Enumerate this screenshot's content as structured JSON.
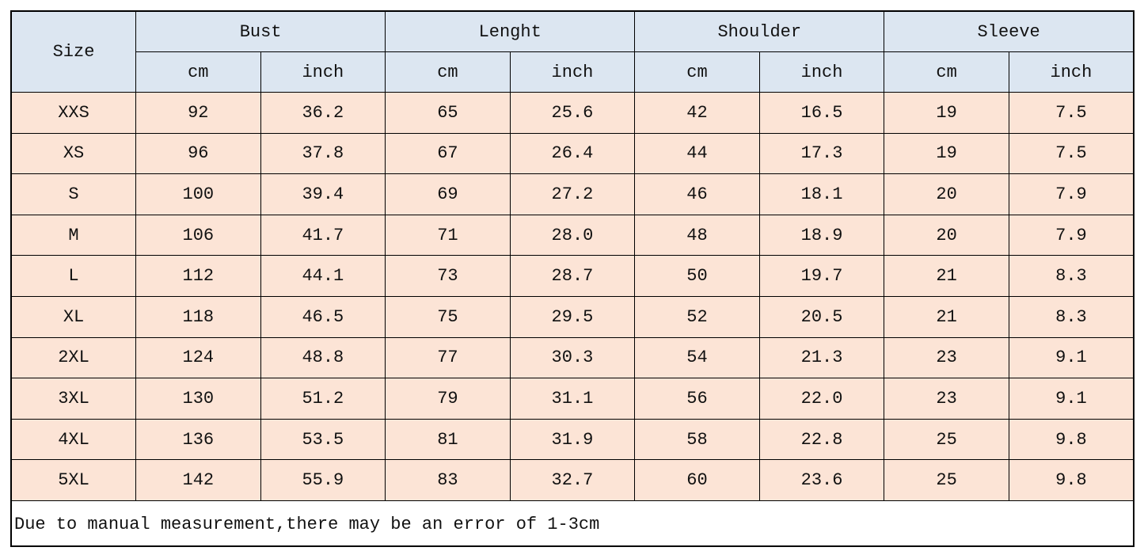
{
  "table": {
    "size_header": "Size",
    "groups": [
      "Bust",
      "Lenght",
      "Shoulder",
      "Sleeve"
    ],
    "units": [
      "cm",
      "inch",
      "cm",
      "inch",
      "cm",
      "inch",
      "cm",
      "inch"
    ],
    "rows": [
      [
        "XXS",
        "92",
        "36.2",
        "65",
        "25.6",
        "42",
        "16.5",
        "19",
        "7.5"
      ],
      [
        "XS",
        "96",
        "37.8",
        "67",
        "26.4",
        "44",
        "17.3",
        "19",
        "7.5"
      ],
      [
        "S",
        "100",
        "39.4",
        "69",
        "27.2",
        "46",
        "18.1",
        "20",
        "7.9"
      ],
      [
        "M",
        "106",
        "41.7",
        "71",
        "28.0",
        "48",
        "18.9",
        "20",
        "7.9"
      ],
      [
        "L",
        "112",
        "44.1",
        "73",
        "28.7",
        "50",
        "19.7",
        "21",
        "8.3"
      ],
      [
        "XL",
        "118",
        "46.5",
        "75",
        "29.5",
        "52",
        "20.5",
        "21",
        "8.3"
      ],
      [
        "2XL",
        "124",
        "48.8",
        "77",
        "30.3",
        "54",
        "21.3",
        "23",
        "9.1"
      ],
      [
        "3XL",
        "130",
        "51.2",
        "79",
        "31.1",
        "56",
        "22.0",
        "23",
        "9.1"
      ],
      [
        "4XL",
        "136",
        "53.5",
        "81",
        "31.9",
        "58",
        "22.8",
        "25",
        "9.8"
      ],
      [
        "5XL",
        "142",
        "55.9",
        "83",
        "32.7",
        "60",
        "23.6",
        "25",
        "9.8"
      ]
    ],
    "note": "Due to manual measurement,there may be an error of 1-3cm"
  }
}
